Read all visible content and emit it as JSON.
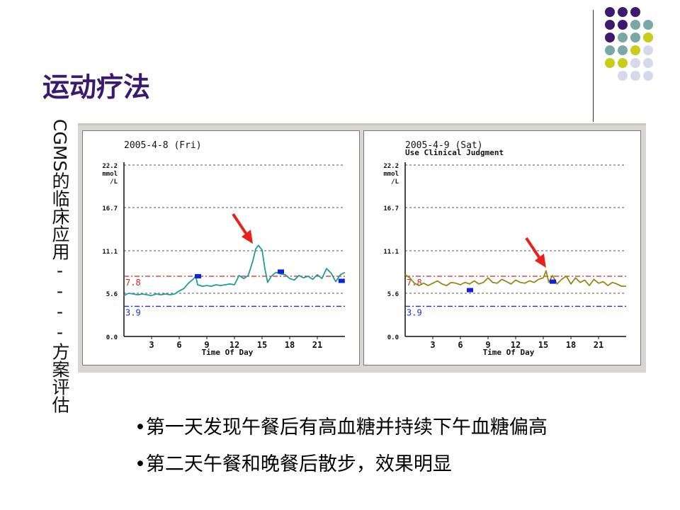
{
  "slide": {
    "title": "运动疗法",
    "side_label_latin": "CGMS",
    "side_label_cjk": "的临床应用----方案评估",
    "bullets": [
      "•第一天发现午餐后有高血糖并持续下午血糖偏高",
      "•第二天午餐和晚餐后散步，效果明显"
    ]
  },
  "decor_colors": {
    "purple": "#3d1a6e",
    "teal": "#7aa8a6",
    "yellow": "#c8cc1a",
    "lavender": "#d8d8ec"
  },
  "chart_data": [
    {
      "type": "line",
      "title": "2005-4-8 (Fri)",
      "subtitle": "",
      "xlabel": "Time Of Day",
      "ylabel": "mmol/L",
      "ylabel_lines": [
        "22.2",
        "mmol",
        "/L"
      ],
      "yticks": [
        "16.7",
        "11.1",
        "5.6",
        "0.0"
      ],
      "xticks": [
        "3",
        "6",
        "9",
        "12",
        "15",
        "18",
        "21"
      ],
      "xlim": [
        0,
        24
      ],
      "ylim": [
        0,
        22.2
      ],
      "line_color": "#1f9c94",
      "threshold_high": {
        "value": 7.8,
        "label": "7.8",
        "color": "#e02020"
      },
      "threshold_low": {
        "value": 3.9,
        "label": "3.9",
        "color": "#1c2fd6"
      },
      "grid": true,
      "x": [
        0,
        0.5,
        1,
        1.5,
        2,
        2.5,
        3,
        3.5,
        4,
        4.5,
        5,
        5.5,
        6,
        6.5,
        7,
        7.5,
        7.8,
        8,
        8.5,
        9,
        9.5,
        10,
        10.5,
        11,
        11.5,
        12,
        12.5,
        13,
        13.5,
        14,
        14.3,
        14.6,
        15,
        15.3,
        15.6,
        16,
        16.5,
        17,
        17.5,
        18,
        18.5,
        19,
        19.5,
        20,
        20.5,
        21,
        21.5,
        22,
        22.5,
        23,
        23.5,
        24
      ],
      "y": [
        5.3,
        5.6,
        5.5,
        5.4,
        5.5,
        5.4,
        5.3,
        5.5,
        5.4,
        5.5,
        5.4,
        5.5,
        5.9,
        6.2,
        6.9,
        7.4,
        7.8,
        6.7,
        6.5,
        6.6,
        6.5,
        6.7,
        6.6,
        6.7,
        6.8,
        6.7,
        7.9,
        7.5,
        7.9,
        9.8,
        11.3,
        11.8,
        11.2,
        8.8,
        7.0,
        7.8,
        8.3,
        8.1,
        8.0,
        7.5,
        7.3,
        7.9,
        7.6,
        7.8,
        7.4,
        8.0,
        7.5,
        8.8,
        8.2,
        7.1,
        8.0,
        8.3
      ],
      "markers": [
        {
          "x": 8.0,
          "y": 7.8
        },
        {
          "x": 17.0,
          "y": 8.4
        },
        {
          "x": 23.6,
          "y": 7.2
        }
      ],
      "arrow_target": {
        "x": 14.0,
        "y": 12.0
      }
    },
    {
      "type": "line",
      "title": "2005-4-9 (Sat)",
      "subtitle": "Use Clinical Judgment",
      "xlabel": "Time Of Day",
      "ylabel": "mmol/L",
      "ylabel_lines": [
        "22.2",
        "mmol",
        "/L"
      ],
      "yticks": [
        "16.7",
        "11.1",
        "5.6",
        "0.0"
      ],
      "xticks": [
        "3",
        "6",
        "9",
        "12",
        "15",
        "18",
        "21"
      ],
      "xlim": [
        0,
        24
      ],
      "ylim": [
        0,
        22.2
      ],
      "line_color": "#8f8b1a",
      "threshold_high": {
        "value": 7.8,
        "label": "7.8",
        "color": "#e02020"
      },
      "threshold_low": {
        "value": 3.9,
        "label": "3.9",
        "color": "#1c2fd6"
      },
      "grid": true,
      "x": [
        0,
        0.5,
        1,
        1.5,
        2,
        2.5,
        3,
        3.5,
        4,
        4.5,
        5,
        5.5,
        6,
        6.5,
        7,
        7.5,
        8,
        8.5,
        9,
        9.5,
        10,
        10.5,
        11,
        11.5,
        12,
        12.5,
        13,
        13.5,
        14,
        14.5,
        15,
        15.3,
        15.6,
        16,
        16.5,
        17,
        17.5,
        18,
        18.5,
        19,
        19.5,
        20,
        20.5,
        21,
        21.5,
        22,
        22.5,
        23,
        23.5,
        24
      ],
      "y": [
        8.0,
        7.6,
        6.9,
        6.6,
        6.9,
        6.6,
        6.9,
        7.2,
        6.8,
        6.6,
        7.0,
        6.9,
        6.7,
        7.0,
        6.8,
        7.2,
        6.8,
        7.0,
        7.6,
        7.0,
        6.9,
        7.4,
        7.1,
        6.8,
        7.3,
        7.0,
        6.9,
        7.2,
        7.0,
        7.4,
        7.6,
        8.5,
        7.0,
        7.9,
        6.8,
        7.4,
        7.8,
        6.8,
        7.6,
        7.0,
        7.3,
        6.6,
        7.4,
        6.9,
        7.1,
        6.6,
        7.0,
        6.8,
        6.5,
        6.5
      ],
      "markers": [
        {
          "x": 7.0,
          "y": 6.0
        },
        {
          "x": 16.0,
          "y": 7.1
        }
      ],
      "arrow_target": {
        "x": 15.3,
        "y": 8.9
      }
    }
  ]
}
